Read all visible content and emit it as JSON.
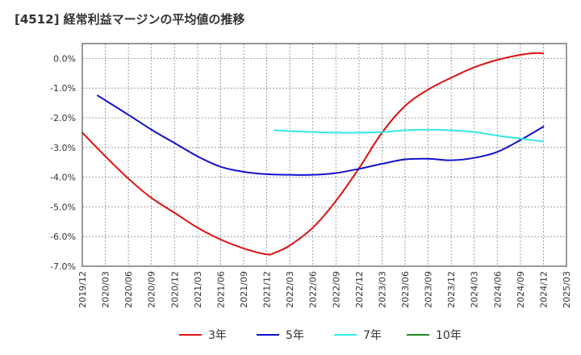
{
  "chart_title": "[4512]  経常利益マージンの平均値の推移",
  "chart_data": {
    "type": "line",
    "title": "[4512]  経常利益マージンの平均値の推移",
    "xlabel": "",
    "ylabel": "",
    "ylim": [
      -7.0,
      0.5
    ],
    "y_ticks": [
      0.0,
      -1.0,
      -2.0,
      -3.0,
      -4.0,
      -5.0,
      -6.0,
      -7.0
    ],
    "y_tick_labels": [
      "0.0%",
      "-1.0%",
      "-2.0%",
      "-3.0%",
      "-4.0%",
      "-5.0%",
      "-6.0%",
      "-7.0%"
    ],
    "x_tick_labels": [
      "2019/12",
      "2020/03",
      "2020/06",
      "2020/09",
      "2020/12",
      "2021/03",
      "2021/06",
      "2021/09",
      "2021/12",
      "2022/03",
      "2022/06",
      "2022/09",
      "2022/12",
      "2023/03",
      "2023/06",
      "2023/09",
      "2023/12",
      "2024/03",
      "2024/06",
      "2024/09",
      "2024/12",
      "2025/03"
    ],
    "grid": true,
    "legend_position": "bottom",
    "series": [
      {
        "name": "3年",
        "color": "#dd1111",
        "x": [
          "2019/12",
          "2020/03",
          "2020/06",
          "2020/09",
          "2020/12",
          "2021/03",
          "2021/06",
          "2021/09",
          "2021/12",
          "2022/01",
          "2022/03",
          "2022/06",
          "2022/09",
          "2022/12",
          "2023/03",
          "2023/06",
          "2023/09",
          "2023/12",
          "2024/03",
          "2024/06",
          "2024/09",
          "2024/11",
          "2024/12"
        ],
        "values": [
          -2.5,
          -3.3,
          -4.05,
          -4.7,
          -5.2,
          -5.7,
          -6.1,
          -6.4,
          -6.6,
          -6.55,
          -6.3,
          -5.7,
          -4.8,
          -3.7,
          -2.5,
          -1.6,
          -1.05,
          -0.65,
          -0.3,
          -0.05,
          0.12,
          0.18,
          0.17
        ]
      },
      {
        "name": "5年",
        "color": "#1111cc",
        "x": [
          "2020/02",
          "2020/06",
          "2020/09",
          "2020/12",
          "2021/03",
          "2021/06",
          "2021/09",
          "2021/12",
          "2022/03",
          "2022/06",
          "2022/09",
          "2022/12",
          "2023/03",
          "2023/06",
          "2023/09",
          "2023/12",
          "2024/03",
          "2024/06",
          "2024/09",
          "2024/12"
        ],
        "values": [
          -1.25,
          -1.9,
          -2.4,
          -2.85,
          -3.3,
          -3.65,
          -3.82,
          -3.9,
          -3.92,
          -3.92,
          -3.86,
          -3.72,
          -3.55,
          -3.4,
          -3.38,
          -3.43,
          -3.35,
          -3.15,
          -2.75,
          -2.3
        ]
      },
      {
        "name": "7年",
        "color": "#33e8e8",
        "x": [
          "2022/01",
          "2022/06",
          "2022/09",
          "2022/12",
          "2023/03",
          "2023/06",
          "2023/09",
          "2023/12",
          "2024/03",
          "2024/06",
          "2024/09",
          "2024/12"
        ],
        "values": [
          -2.42,
          -2.48,
          -2.5,
          -2.5,
          -2.48,
          -2.42,
          -2.4,
          -2.42,
          -2.48,
          -2.6,
          -2.7,
          -2.8
        ]
      },
      {
        "name": "10年",
        "color": "#228822",
        "x": [],
        "values": []
      }
    ]
  }
}
